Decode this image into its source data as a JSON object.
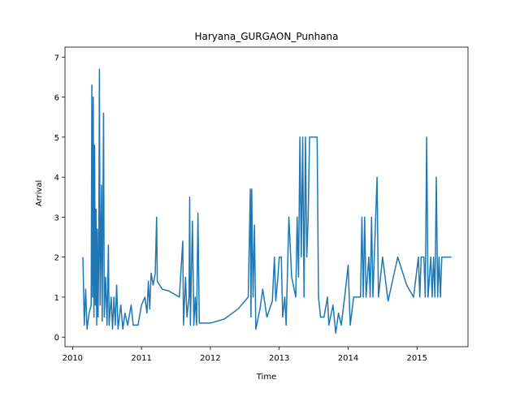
{
  "chart_data": {
    "type": "line",
    "title": "Haryana_GURGAON_Punhana",
    "x_label": "Time",
    "y_label": "Arrival",
    "color": "#1f77b4",
    "x": [
      2010.15,
      2010.17,
      2010.19,
      2010.21,
      2010.24,
      2010.27,
      2010.28,
      2010.29,
      2010.3,
      2010.31,
      2010.32,
      2010.33,
      2010.34,
      2010.35,
      2010.36,
      2010.37,
      2010.38,
      2010.39,
      2010.4,
      2010.42,
      2010.43,
      2010.45,
      2010.46,
      2010.48,
      2010.5,
      2010.52,
      2010.53,
      2010.56,
      2010.58,
      2010.6,
      2010.62,
      2010.64,
      2010.66,
      2010.7,
      2010.73,
      2010.76,
      2010.8,
      2010.85,
      2010.88,
      2010.95,
      2011.0,
      2011.05,
      2011.08,
      2011.1,
      2011.12,
      2011.14,
      2011.17,
      2011.2,
      2011.22,
      2011.23,
      2011.3,
      2011.4,
      2011.55,
      2011.6,
      2011.61,
      2011.64,
      2011.66,
      2011.69,
      2011.7,
      2011.71,
      2011.74,
      2011.76,
      2011.78,
      2011.8,
      2011.82,
      2011.84,
      2012.0,
      2012.2,
      2012.4,
      2012.55,
      2012.58,
      2012.59,
      2012.6,
      2012.62,
      2012.64,
      2012.66,
      2012.72,
      2012.76,
      2012.82,
      2012.9,
      2012.93,
      2012.95,
      2012.98,
      2013.0,
      2013.03,
      2013.05,
      2013.08,
      2013.1,
      2013.14,
      2013.18,
      2013.24,
      2013.26,
      2013.28,
      2013.3,
      2013.32,
      2013.34,
      2013.36,
      2013.38,
      2013.4,
      2013.42,
      2013.44,
      2013.5,
      2013.55,
      2013.57,
      2013.6,
      2013.65,
      2013.7,
      2013.72,
      2013.78,
      2013.82,
      2013.86,
      2013.9,
      2013.95,
      2014.0,
      2014.03,
      2014.08,
      2014.18,
      2014.2,
      2014.22,
      2014.24,
      2014.26,
      2014.3,
      2014.32,
      2014.34,
      2014.36,
      2014.4,
      2014.42,
      2014.44,
      2014.5,
      2014.58,
      2014.72,
      2014.85,
      2014.95,
      2015.02,
      2015.04,
      2015.06,
      2015.1,
      2015.12,
      2015.14,
      2015.16,
      2015.2,
      2015.22,
      2015.24,
      2015.26,
      2015.28,
      2015.3,
      2015.32,
      2015.34,
      2015.36,
      2015.5
    ],
    "values": [
      2.0,
      0.3,
      1.2,
      0.2,
      0.6,
      0.8,
      6.3,
      1.0,
      6.0,
      0.5,
      4.8,
      0.8,
      3.2,
      0.3,
      2.7,
      0.5,
      2.0,
      6.7,
      0.8,
      3.8,
      0.4,
      5.6,
      0.5,
      1.5,
      0.3,
      2.3,
      0.3,
      1.0,
      0.2,
      1.0,
      0.3,
      1.3,
      0.2,
      0.8,
      0.2,
      0.6,
      0.3,
      0.8,
      0.3,
      0.3,
      0.8,
      1.0,
      0.6,
      1.4,
      0.7,
      1.6,
      1.3,
      1.6,
      3.0,
      1.4,
      1.2,
      1.15,
      1.0,
      2.4,
      0.3,
      1.5,
      0.5,
      1.0,
      3.5,
      0.3,
      2.9,
      0.3,
      1.0,
      0.3,
      3.1,
      0.35,
      0.35,
      0.45,
      0.7,
      1.0,
      3.7,
      0.5,
      3.7,
      1.0,
      2.8,
      0.2,
      0.7,
      1.2,
      0.5,
      0.9,
      2.0,
      0.9,
      1.5,
      2.0,
      2.0,
      0.5,
      1.0,
      0.3,
      3.0,
      1.5,
      1.0,
      3.0,
      1.5,
      5.0,
      2.0,
      5.0,
      1.0,
      5.0,
      2.0,
      3.0,
      5.0,
      5.0,
      5.0,
      1.0,
      0.5,
      0.5,
      1.0,
      0.3,
      0.8,
      0.1,
      0.6,
      0.3,
      1.0,
      1.8,
      0.3,
      1.0,
      1.0,
      3.0,
      1.0,
      3.0,
      1.0,
      2.0,
      1.0,
      3.0,
      1.0,
      3.0,
      4.0,
      1.0,
      2.0,
      0.9,
      2.0,
      1.3,
      1.0,
      2.0,
      1.0,
      2.0,
      2.0,
      1.0,
      5.0,
      1.0,
      2.0,
      1.0,
      2.0,
      1.0,
      4.0,
      1.0,
      2.0,
      1.0,
      2.0,
      2.0
    ],
    "xlim": [
      2009.89,
      2015.74
    ],
    "ylim": [
      -0.24,
      7.25
    ],
    "xticks": [
      2010,
      2011,
      2012,
      2013,
      2014,
      2015
    ],
    "yticks": [
      0,
      1,
      2,
      3,
      4,
      5,
      6,
      7
    ]
  }
}
